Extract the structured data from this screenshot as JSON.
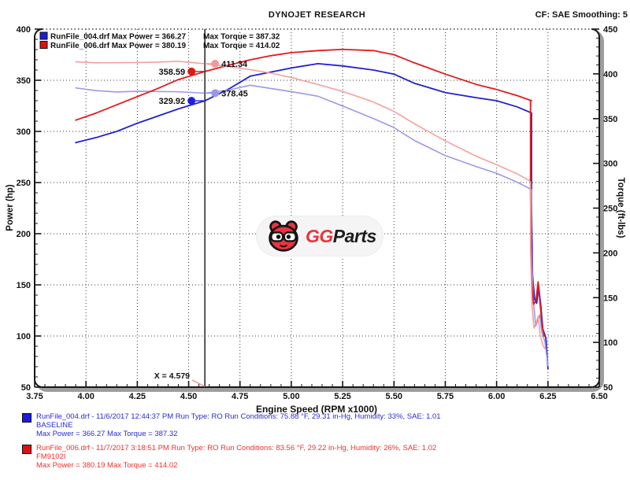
{
  "header": {
    "title": "DYNOJET RESEARCH",
    "cf": "CF: SAE  Smoothing: 5"
  },
  "legend_top": {
    "rows": [
      {
        "swatch_color": "#1c1cdd",
        "power_text": "RunFile_004.drf Max Power = 366.27",
        "torque_text": "Max Torque = 387.32"
      },
      {
        "swatch_color": "#e01010",
        "power_text": "RunFile_006.drf Max Power = 380.19",
        "torque_text": "Max Torque = 414.02"
      }
    ]
  },
  "axes": {
    "x": {
      "label": "Engine Speed (RPM x1000)",
      "min": 3.75,
      "max": 6.5,
      "major_ticks": [
        "3.75",
        "4.00",
        "4.25",
        "4.50",
        "4.75",
        "5.00",
        "5.25",
        "5.50",
        "5.75",
        "6.00",
        "6.25",
        "6.50"
      ],
      "minor_step": 0.05
    },
    "power": {
      "label": "Power (hp)",
      "min": 50,
      "max": 400,
      "major_ticks": [
        "400",
        "350",
        "300",
        "250",
        "200",
        "150",
        "100",
        "50"
      ],
      "minor_step": 10
    },
    "torque": {
      "label": "Torque (ft-lbs)",
      "min": 50,
      "max": 450,
      "major_ticks": [
        "450",
        "400",
        "350",
        "300",
        "250",
        "200",
        "150",
        "100",
        "50"
      ],
      "minor_step": 10
    }
  },
  "cursor": {
    "label": "X = 4.579",
    "x": 4.579,
    "markers": [
      {
        "label": "358.59",
        "axis": "power",
        "value": 358.59,
        "side": "left",
        "color": "#e01818"
      },
      {
        "label": "411.34",
        "axis": "torque",
        "value": 411.34,
        "side": "right",
        "color": "#f49898"
      },
      {
        "label": "378.45",
        "axis": "torque",
        "value": 378.45,
        "side": "right",
        "color": "#9898e8"
      },
      {
        "label": "329.92",
        "axis": "power",
        "value": 329.92,
        "side": "left",
        "color": "#2020d8"
      }
    ]
  },
  "chart_data": {
    "type": "line",
    "title": "DYNOJET RESEARCH",
    "xlabel": "Engine Speed (RPM x1000)",
    "ylabel_left": "Power (hp)",
    "ylabel_right": "Torque (ft-lbs)",
    "xlim": [
      3.75,
      6.5
    ],
    "ylim_left": [
      50,
      400
    ],
    "ylim_right": [
      50,
      450
    ],
    "grid": "dotted",
    "legend_position": "top-left",
    "x_rpm": [
      3.95,
      4.05,
      4.15,
      4.25,
      4.35,
      4.45,
      4.579,
      4.7,
      4.8,
      4.9,
      5.0,
      5.13,
      5.25,
      5.4,
      5.5,
      5.6,
      5.75,
      5.9,
      6.0,
      6.1,
      6.17
    ],
    "series": [
      {
        "name": "RunFile_004.drf Power (hp)",
        "axis": "power",
        "color": "#2121cf",
        "width": 1.8,
        "values": [
          289,
          294,
          300,
          308,
          315,
          322,
          329.92,
          342,
          354,
          358,
          362,
          366.27,
          364,
          360,
          356,
          347,
          338,
          333,
          330,
          324,
          318
        ],
        "max": 366.27
      },
      {
        "name": "RunFile_004.drf Torque (ft-lbs)",
        "axis": "torque",
        "color": "#9a9ae6",
        "width": 1.6,
        "values": [
          384.3,
          381.3,
          379.7,
          380.6,
          380.3,
          380.0,
          378.45,
          382.2,
          387.32,
          383.7,
          380.2,
          375.0,
          364.1,
          350.1,
          340.0,
          325.5,
          308.7,
          296.5,
          288.9,
          279.0,
          270.7
        ],
        "max": 387.32
      },
      {
        "name": "RunFile_006.drf Power (hp)",
        "axis": "power",
        "color": "#e31b1b",
        "width": 1.8,
        "values": [
          311,
          318,
          326,
          334,
          342,
          350.7,
          358.59,
          365,
          370,
          374,
          377,
          379,
          380.19,
          379,
          375,
          367,
          356,
          346,
          341,
          335,
          330
        ],
        "max": 380.19
      },
      {
        "name": "RunFile_006.drf Torque (ft-lbs)",
        "axis": "torque",
        "color": "#f4a0a0",
        "width": 1.6,
        "values": [
          413.5,
          412.4,
          412.5,
          412.7,
          413.1,
          414.02,
          411.34,
          407.9,
          404.8,
          400.9,
          396.0,
          388.1,
          380.4,
          368.6,
          358.1,
          344.2,
          325.1,
          308.0,
          298.5,
          288.3,
          279.5
        ],
        "max": 414.02
      }
    ],
    "tails": [
      {
        "series": 0,
        "points": [
          [
            6.17,
            318
          ],
          [
            6.17,
            230
          ],
          [
            6.175,
            160
          ],
          [
            6.185,
            136
          ],
          [
            6.195,
            132
          ],
          [
            6.205,
            148
          ],
          [
            6.215,
            130
          ],
          [
            6.225,
            107
          ],
          [
            6.24,
            98
          ],
          [
            6.25,
            68
          ]
        ]
      },
      {
        "series": 1,
        "points": [
          [
            6.17,
            270.7
          ],
          [
            6.17,
            210
          ],
          [
            6.178,
            150
          ],
          [
            6.19,
            118
          ],
          [
            6.2,
            124
          ],
          [
            6.21,
            131
          ],
          [
            6.22,
            112
          ],
          [
            6.235,
            101
          ],
          [
            6.25,
            74
          ]
        ]
      },
      {
        "series": 2,
        "points": [
          [
            6.165,
            330
          ],
          [
            6.165,
            240
          ],
          [
            6.17,
            155
          ],
          [
            6.18,
            131
          ],
          [
            6.192,
            135
          ],
          [
            6.202,
            153
          ],
          [
            6.212,
            131
          ],
          [
            6.222,
            109
          ],
          [
            6.232,
            100
          ]
        ]
      },
      {
        "series": 3,
        "points": [
          [
            6.165,
            279.5
          ],
          [
            6.165,
            205
          ],
          [
            6.172,
            142
          ],
          [
            6.182,
            116
          ],
          [
            6.192,
            122
          ],
          [
            6.202,
            129
          ],
          [
            6.212,
            109
          ],
          [
            6.225,
            97
          ],
          [
            6.235,
            93
          ]
        ]
      }
    ]
  },
  "logo": {
    "gg": "GG",
    "parts": "Parts"
  },
  "footer": {
    "runs": [
      {
        "color": "#2a2ad4",
        "line1": "RunFile_004.drf - 11/6/2017 12:44:37 PM  Run Type: RO  Run Conditions: 75.88 °F, 29.31 in-Hg,  Humidity:  33%, SAE: 1.01",
        "line2": "BASELINE",
        "line3": "Max Power = 366.27  Max Torque = 387.32"
      },
      {
        "color": "#f03030",
        "line1": "RunFile_006.drf - 11/7/2017 3:18:51 PM  Run Type: RO  Run Conditions: 83.56 °F, 29.22 in-Hg,  Humidity:  26%, SAE: 1.02",
        "line2": "FM9102I",
        "line3": "Max Power = 380.19  Max Torque = 414.02"
      }
    ]
  }
}
